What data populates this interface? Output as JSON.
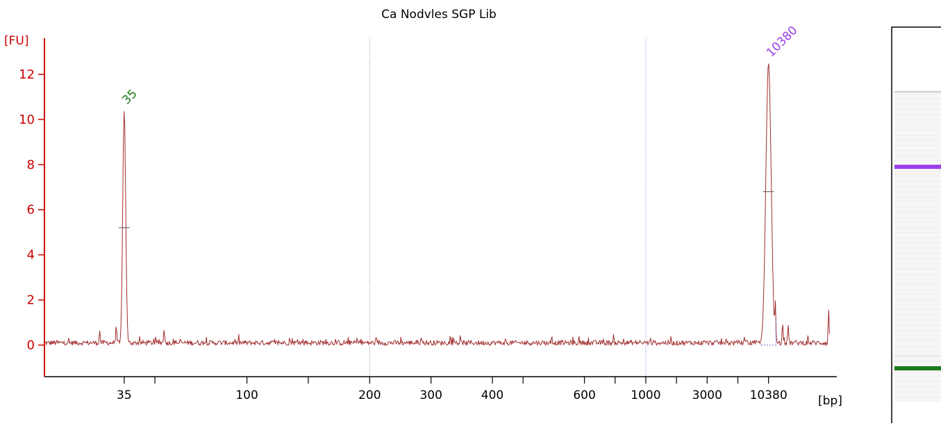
{
  "chart_data": {
    "type": "line",
    "title": "Ca Nodvles SGP Lib",
    "ylabel": "[FU]",
    "xlabel": "[bp]",
    "ylim": [
      -1.4,
      13.6
    ],
    "y_ticks": [
      0,
      2,
      4,
      6,
      8,
      10,
      12
    ],
    "x_tick_labels": [
      "35",
      "",
      "100",
      "",
      "200",
      "300",
      "400",
      "",
      "600",
      "",
      "1000",
      "",
      "3000",
      "",
      "10380"
    ],
    "x_tick_axis_positions": [
      35,
      40,
      55,
      65,
      75,
      85,
      95,
      100,
      110,
      115,
      120,
      125,
      130,
      135,
      140
    ],
    "x_range": [
      22,
      150
    ],
    "grid": "off",
    "series_color": "#a02c2c",
    "axis_color": "#cc0000",
    "markers": [
      {
        "label": "35",
        "x": 35,
        "y": 10.4,
        "color": "#1a7a1a"
      },
      {
        "label": "10380",
        "x": 140,
        "y": 12.5,
        "color": "#9b3fe6"
      }
    ],
    "vertical_guides": [
      {
        "x": 75,
        "color": "#a05a8c"
      },
      {
        "x": 120,
        "color": "#7a7ae0"
      }
    ],
    "peaks": [
      {
        "x": 35,
        "y": 10.4,
        "half_width": 0.5,
        "midpoint_mark_y": 5.2
      },
      {
        "x": 140,
        "y": 12.5,
        "half_width": 0.9,
        "midpoint_mark_y": 6.8
      }
    ],
    "small_features": [
      {
        "x": 33.7,
        "y": 0.9
      },
      {
        "x": 31,
        "y": 0.65
      },
      {
        "x": 41.5,
        "y": 0.7
      },
      {
        "x": 141.1,
        "y": 2.1
      },
      {
        "x": 142.3,
        "y": 1.0
      },
      {
        "x": 143.2,
        "y": 0.9
      },
      {
        "x": 149.8,
        "y": 1.6
      }
    ]
  },
  "gel": {
    "bands": [
      {
        "name": "upper-marker",
        "color": "#9b3fe6"
      },
      {
        "name": "lower-marker",
        "color": "#1a7a1a"
      }
    ]
  }
}
